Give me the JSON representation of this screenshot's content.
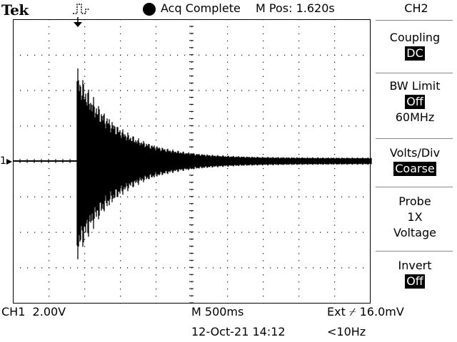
{
  "header": {
    "brand": "Tek",
    "status_icon": "trigger-ready-icon",
    "acq_status": "Acq Complete",
    "m_pos": "M Pos: 1.620s"
  },
  "ch1_marker": "1",
  "menu": {
    "title": "CH2",
    "coupling": {
      "label": "Coupling",
      "value": "DC"
    },
    "bw_limit": {
      "label": "BW Limit",
      "value": "Off",
      "sub": "60MHz"
    },
    "volts_div": {
      "label": "Volts/Div",
      "value": "Coarse"
    },
    "probe": {
      "label": "Probe",
      "line1": "1X",
      "line2": "Voltage"
    },
    "invert": {
      "label": "Invert",
      "value": "Off"
    }
  },
  "footer": {
    "ch1_scale": "CH1  2.00V",
    "timebase": "M 500ms",
    "trigger": "Ext ⌿ 16.0mV",
    "datetime": "12-Oct-21 14:12",
    "freq": "<10Hz"
  },
  "colors": {
    "trace": "#000000",
    "background": "#ffffff",
    "grid": "#000000"
  }
}
